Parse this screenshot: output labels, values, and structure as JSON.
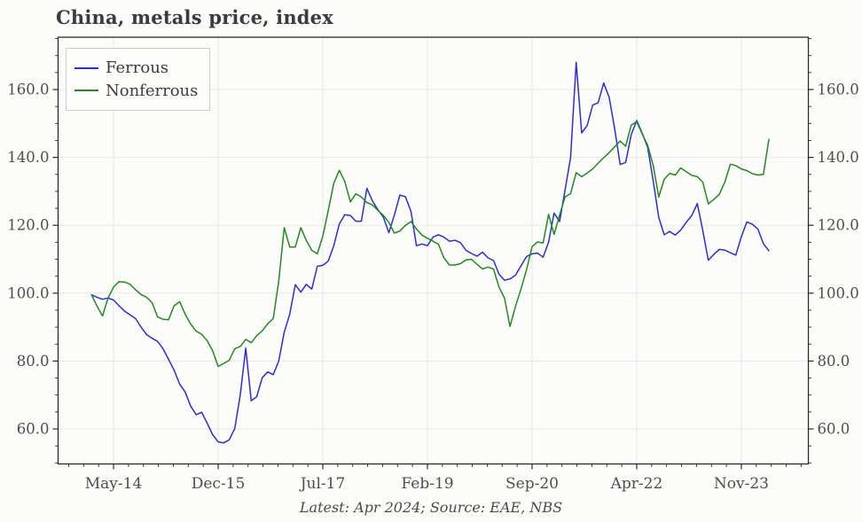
{
  "chart": {
    "title": "China, metals price, index",
    "footer": "Latest: Apr 2024; Source: EAE, NBS",
    "colors": {
      "ferrous": "#2d2dd8",
      "nonferrous": "#1f8b1f",
      "grid": "#e7e7e7",
      "spine": "#2b2b2b",
      "tick_text": "#4d4d4d",
      "title_text": "#3b3b3b"
    }
  },
  "chart_data": {
    "type": "line",
    "title": "China, metals price, index",
    "annotation": "Latest: Apr 2024; Source: EAE, NBS",
    "x_axis": {
      "start": "Jan-14",
      "end": "Apr-24",
      "frequency": "monthly",
      "n_points": 124,
      "major_tick_labels": [
        "May-14",
        "Dec-15",
        "Jul-17",
        "Feb-19",
        "Sep-20",
        "Apr-22",
        "Nov-23"
      ],
      "major_tick_month_indices": [
        4,
        23,
        42,
        61,
        80,
        99,
        118
      ]
    },
    "y_axis": {
      "min": 49.7,
      "max": 175.4,
      "major_ticks": [
        60,
        80,
        100,
        120,
        140,
        160
      ],
      "tick_labels": [
        "60.0",
        "80.0",
        "100.0",
        "120.0",
        "140.0",
        "160.0"
      ],
      "minor_tick_step": 5,
      "labels_on_both_sides": true
    },
    "grid": true,
    "legend_position": "upper-left",
    "series": [
      {
        "name": "Ferrous",
        "color": "#2d2dd8",
        "values": [
          99.5,
          98.8,
          98.2,
          98.6,
          98.0,
          96.3,
          94.7,
          93.6,
          92.5,
          90.0,
          87.8,
          86.7,
          85.8,
          83.6,
          80.5,
          77.3,
          73.2,
          70.9,
          66.7,
          64.2,
          64.9,
          61.7,
          58.3,
          56.2,
          55.9,
          56.8,
          60.1,
          70.0,
          83.8,
          68.3,
          69.5,
          75.1,
          76.8,
          76.0,
          80.0,
          88.5,
          93.8,
          102.5,
          100.3,
          102.6,
          101.2,
          107.9,
          108.2,
          109.5,
          114.0,
          120.4,
          123.1,
          122.9,
          121.2,
          121.2,
          130.9,
          127.2,
          124.6,
          122.4,
          117.8,
          123.0,
          128.9,
          128.4,
          124.1,
          114.0,
          114.5,
          114.0,
          116.5,
          117.2,
          116.5,
          115.3,
          115.6,
          114.9,
          112.6,
          111.7,
          110.9,
          112.1,
          110.4,
          109.6,
          105.6,
          103.8,
          104.2,
          105.3,
          108.1,
          110.8,
          111.6,
          111.8,
          110.6,
          115.0,
          123.6,
          121.1,
          130.4,
          140.0,
          168.0,
          147.2,
          149.4,
          155.4,
          156.1,
          161.9,
          157.7,
          148.4,
          137.9,
          138.5,
          146.7,
          150.9,
          147.1,
          142.9,
          133.0,
          122.3,
          117.2,
          118.2,
          117.1,
          118.6,
          120.9,
          122.9,
          126.4,
          118.4,
          109.7,
          111.4,
          112.9,
          112.7,
          111.9,
          111.2,
          116.6,
          121.0,
          120.3,
          118.9,
          114.6,
          112.5
        ]
      },
      {
        "name": "Nonferrous",
        "color": "#1f8b1f",
        "values": [
          99.5,
          96.2,
          93.3,
          98.5,
          101.8,
          103.4,
          103.3,
          102.6,
          101.0,
          99.6,
          98.8,
          97.2,
          93.0,
          92.3,
          92.2,
          96.3,
          97.5,
          93.8,
          90.9,
          88.8,
          87.9,
          86.0,
          83.0,
          78.4,
          79.3,
          80.2,
          83.6,
          84.3,
          86.4,
          85.4,
          87.5,
          88.9,
          91.0,
          92.5,
          103.5,
          119.3,
          113.6,
          113.6,
          119.3,
          115.5,
          112.6,
          111.6,
          116.8,
          124.4,
          132.4,
          136.2,
          132.9,
          126.9,
          129.3,
          128.3,
          126.7,
          126.0,
          124.4,
          122.9,
          120.8,
          117.7,
          118.3,
          120.0,
          121.1,
          118.9,
          117.1,
          116.2,
          115.3,
          114.4,
          110.4,
          108.3,
          108.3,
          108.7,
          109.8,
          110.0,
          108.5,
          107.1,
          107.7,
          107.1,
          101.8,
          98.5,
          90.2,
          96.1,
          101.3,
          107.0,
          113.7,
          115.1,
          114.8,
          123.2,
          117.3,
          123.0,
          128.4,
          129.3,
          135.5,
          134.3,
          135.4,
          136.6,
          138.3,
          139.9,
          141.4,
          143.1,
          144.8,
          143.3,
          149.5,
          150.5,
          146.9,
          143.5,
          137.6,
          128.3,
          133.6,
          135.3,
          134.8,
          136.9,
          135.8,
          134.7,
          134.3,
          132.7,
          126.3,
          127.6,
          129.1,
          132.7,
          138.0,
          137.6,
          136.6,
          136.1,
          135.2,
          134.8,
          135.0,
          145.3
        ]
      }
    ]
  },
  "legend": {
    "items": [
      {
        "label": "Ferrous",
        "color": "#2d2dd8"
      },
      {
        "label": "Nonferrous",
        "color": "#1f8b1f"
      }
    ]
  }
}
